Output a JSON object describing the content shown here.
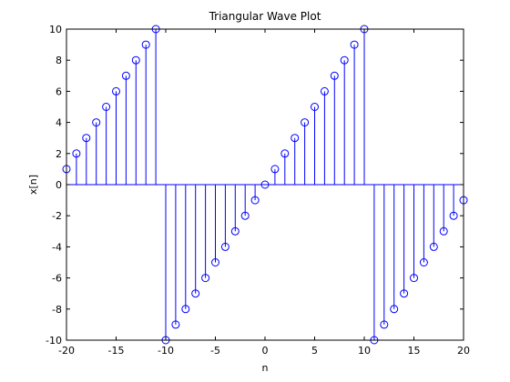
{
  "chart_data": {
    "type": "stem",
    "title": "Triangular Wave Plot",
    "xlabel": "n",
    "ylabel": "x[n]",
    "xlim": [
      -20,
      20
    ],
    "ylim": [
      -10,
      10
    ],
    "xticks": [
      "-20",
      "-15",
      "-10",
      "-5",
      "0",
      "5",
      "10",
      "15",
      "20"
    ],
    "yticks": [
      "-10",
      "-8",
      "-6",
      "-4",
      "-2",
      "0",
      "2",
      "4",
      "6",
      "8",
      "10"
    ],
    "grid": false,
    "color": "#0000ff",
    "marker": "circle-open",
    "x": [
      -20,
      -19,
      -18,
      -17,
      -16,
      -15,
      -14,
      -13,
      -12,
      -11,
      -10,
      -9,
      -8,
      -7,
      -6,
      -5,
      -4,
      -3,
      -2,
      -1,
      0,
      1,
      2,
      3,
      4,
      5,
      6,
      7,
      8,
      9,
      10,
      11,
      12,
      13,
      14,
      15,
      16,
      17,
      18,
      19,
      20
    ],
    "y": [
      1,
      2,
      3,
      4,
      5,
      6,
      7,
      8,
      9,
      10,
      -10,
      -9,
      -8,
      -7,
      -6,
      -5,
      -4,
      -3,
      -2,
      -1,
      0,
      1,
      2,
      3,
      4,
      5,
      6,
      7,
      8,
      9,
      10,
      -10,
      -9,
      -8,
      -7,
      -6,
      -5,
      -4,
      -3,
      -2,
      -1
    ]
  }
}
